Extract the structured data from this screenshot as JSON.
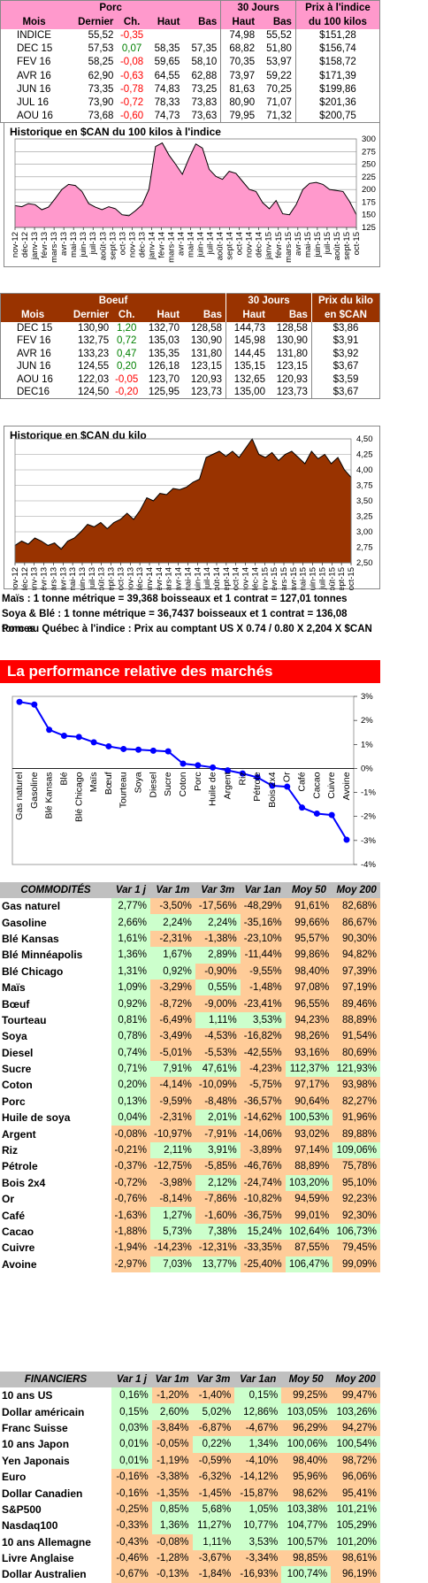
{
  "porc": {
    "title": "Porc",
    "h30": "30 Jours",
    "hprix": "Prix à l'indice",
    "cols": [
      "Mois",
      "Dernier",
      "Ch.",
      "Haut",
      "Bas",
      "Haut",
      "Bas",
      "du 100 kilos"
    ],
    "rows": [
      {
        "m": "INDICE",
        "d": "55,52",
        "ch": "-0,35",
        "hi": "",
        "lo": "",
        "h30": "74,98",
        "l30": "55,52",
        "p": "$151,28"
      },
      {
        "m": "DEC 15",
        "d": "57,53",
        "ch": "0,07",
        "hi": "58,35",
        "lo": "57,35",
        "h30": "68,82",
        "l30": "51,80",
        "p": "$156,74"
      },
      {
        "m": "FEV 16",
        "d": "58,25",
        "ch": "-0,08",
        "hi": "59,65",
        "lo": "58,10",
        "h30": "70,35",
        "l30": "53,97",
        "p": "$158,72"
      },
      {
        "m": "AVR 16",
        "d": "62,90",
        "ch": "-0,63",
        "hi": "64,55",
        "lo": "62,88",
        "h30": "73,97",
        "l30": "59,22",
        "p": "$171,39"
      },
      {
        "m": "JUN 16",
        "d": "73,35",
        "ch": "-0,78",
        "hi": "74,83",
        "lo": "73,25",
        "h30": "81,63",
        "l30": "70,25",
        "p": "$199,86"
      },
      {
        "m": "JUL 16",
        "d": "73,90",
        "ch": "-0,72",
        "hi": "78,33",
        "lo": "73,83",
        "h30": "80,90",
        "l30": "71,07",
        "p": "$201,36"
      },
      {
        "m": "AOU 16",
        "d": "73,68",
        "ch": "-0,60",
        "hi": "74,73",
        "lo": "73,63",
        "h30": "79,95",
        "l30": "71,32",
        "p": "$200,75"
      }
    ]
  },
  "boeuf": {
    "title": "Boeuf",
    "h30": "30 Jours",
    "hprix": "Prix du kilo",
    "cols": [
      "Mois",
      "Dernier",
      "Ch.",
      "Haut",
      "Bas",
      "Haut",
      "Bas",
      "en $CAN"
    ],
    "rows": [
      {
        "m": "DEC 15",
        "d": "130,90",
        "ch": "1,20",
        "hi": "132,70",
        "lo": "128,58",
        "h30": "144,73",
        "l30": "128,58",
        "p": "$3,86"
      },
      {
        "m": "FEV 16",
        "d": "132,75",
        "ch": "0,72",
        "hi": "135,03",
        "lo": "130,90",
        "h30": "145,98",
        "l30": "130,90",
        "p": "$3,91"
      },
      {
        "m": "AVR 16",
        "d": "133,23",
        "ch": "0,47",
        "hi": "135,35",
        "lo": "131,80",
        "h30": "144,45",
        "l30": "131,80",
        "p": "$3,92"
      },
      {
        "m": "JUN 16",
        "d": "124,55",
        "ch": "0,20",
        "hi": "126,18",
        "lo": "123,15",
        "h30": "135,15",
        "l30": "123,15",
        "p": "$3,67"
      },
      {
        "m": "AOU 16",
        "d": "122,03",
        "ch": "-0,05",
        "hi": "123,70",
        "lo": "120,93",
        "h30": "132,65",
        "l30": "120,93",
        "p": "$3,59"
      },
      {
        "m": "DEC16",
        "d": "124,50",
        "ch": "-0,20",
        "hi": "125,95",
        "lo": "123,73",
        "h30": "135,00",
        "l30": "123,73",
        "p": "$3,67"
      }
    ]
  },
  "chart_data": [
    {
      "type": "area",
      "title": "Historique en $CAN du 100 kilos à l'indice",
      "fill": "#ff99cc",
      "ylim": [
        125,
        300
      ],
      "yticks": [
        "125",
        "150",
        "175",
        "200",
        "225",
        "250",
        "275",
        "300"
      ],
      "xlabels": [
        "nov-12",
        "déc-12",
        "janv-13",
        "févr-13",
        "mars-13",
        "avr-13",
        "mai-13",
        "juin-13",
        "juil-13",
        "août-13",
        "sept-13",
        "oct-13",
        "nov-13",
        "déc-13",
        "janv-14",
        "févr-14",
        "mars-14",
        "avr-14",
        "mai-14",
        "juin-14",
        "juil-14",
        "août-14",
        "sept-14",
        "oct-14",
        "nov-14",
        "déc-14",
        "janv-15",
        "févr-15",
        "mars-15",
        "avr-15",
        "mai-15",
        "juin-15",
        "juil-15",
        "août-15",
        "sept-15",
        "oct-15"
      ],
      "values": [
        168,
        166,
        172,
        170,
        160,
        165,
        182,
        200,
        210,
        208,
        196,
        172,
        165,
        160,
        166,
        162,
        150,
        148,
        158,
        170,
        200,
        285,
        292,
        268,
        250,
        230,
        262,
        290,
        282,
        240,
        226,
        220,
        236,
        232,
        216,
        200,
        196,
        174,
        162,
        178,
        152,
        150,
        170,
        200,
        212,
        214,
        210,
        200,
        198,
        196,
        176,
        150
      ]
    },
    {
      "type": "area",
      "title": "Historique en $CAN du kilo",
      "fill": "#993300",
      "ylim": [
        2.5,
        4.5
      ],
      "yticks": [
        "2,50",
        "2,75",
        "3,00",
        "3,25",
        "3,50",
        "3,75",
        "4,00",
        "4,25",
        "4,50"
      ],
      "xlabels": [
        "nov-12",
        "déc-12",
        "janv-13",
        "févr-13",
        "mars-13",
        "avr-13",
        "mai-13",
        "juin-13",
        "juil-13",
        "août-13",
        "sept-13",
        "oct-13",
        "nov-13",
        "déc-13",
        "janv-14",
        "févr-14",
        "mars-14",
        "avr-14",
        "mai-14",
        "juin-14",
        "juil-14",
        "août-14",
        "sept-14",
        "oct-14",
        "nov-14",
        "déc-14",
        "janv-15",
        "févr-15",
        "mars-15",
        "avr-15",
        "mai-15",
        "juin-15",
        "juil-15",
        "août-15",
        "sept-15",
        "oct-15"
      ],
      "values": [
        2.78,
        2.85,
        2.8,
        2.9,
        2.85,
        2.78,
        2.82,
        2.72,
        2.85,
        2.9,
        3.0,
        3.12,
        3.08,
        3.15,
        3.05,
        3.15,
        3.2,
        3.3,
        3.2,
        3.35,
        3.55,
        3.5,
        3.62,
        3.6,
        3.7,
        3.68,
        3.72,
        3.8,
        3.85,
        4.2,
        4.25,
        4.3,
        4.22,
        4.3,
        4.2,
        4.35,
        4.5,
        4.25,
        4.2,
        4.28,
        4.15,
        4.25,
        4.3,
        4.2,
        4.1,
        4.3,
        4.18,
        4.25,
        4.1,
        4.2,
        4.0,
        3.88
      ]
    },
    {
      "type": "line",
      "title": "",
      "color": "#0000ff",
      "ylim": [
        -4,
        3
      ],
      "yticks": [
        "-4%",
        "-3%",
        "-2%",
        "-1%",
        "0%",
        "1%",
        "2%",
        "3%"
      ],
      "categories": [
        "Gas naturel",
        "Gasoline",
        "Blé Kansas",
        "Blé Minnéapolis",
        "Blé Chicago",
        "Maïs",
        "Bœuf",
        "Tourteau",
        "Soya",
        "Diesel",
        "Sucre",
        "Coton",
        "Porc",
        "Huile de soya",
        "Argent",
        "Riz",
        "Pétrole",
        "Bois 2x4",
        "Or",
        "Café",
        "Cacao",
        "Cuivre",
        "Avoine"
      ],
      "xlabels": [
        "Gas naturel",
        "Gasoline",
        "Blé Kansas",
        "Blé",
        "Blé Chicago",
        "Maïs",
        "Bœuf",
        "Tourteau",
        "Soya",
        "Diesel",
        "Sucre",
        "Coton",
        "Porc",
        "Huile de",
        "Argent",
        "Riz",
        "Pétrole",
        "Bois 2x4",
        "Or",
        "Café",
        "Cacao",
        "Cuivre",
        "Avoine"
      ],
      "values": [
        2.77,
        2.66,
        1.61,
        1.36,
        1.31,
        1.09,
        0.92,
        0.81,
        0.78,
        0.74,
        0.71,
        0.2,
        0.13,
        0.04,
        -0.08,
        -0.21,
        -0.37,
        -0.72,
        -0.76,
        -1.63,
        -1.88,
        -1.94,
        -2.97
      ]
    }
  ],
  "notes": [
    "Maïs : 1 tonne métrique = 39,368 boisseaux et 1 contrat = 127,01 tonnes",
    "Soya & Blé : 1 tonne métrique = 36,7437 boisseaux et 1 contrat = 136,08 tonnes",
    "Porc au Québec à l'indice : Prix au comptant US X 0.74 / 0.80 X 2,204 X $CAN"
  ],
  "perf_title": "La performance relative des marchés",
  "comm_head": [
    "COMMODITÉS",
    "Var 1 j",
    "Var 1m",
    "Var 3m",
    "Var 1an",
    "Moy 50",
    "Moy 200"
  ],
  "commodities": [
    [
      "Gas naturel",
      "2,77%",
      "-3,50%",
      "-17,56%",
      "-48,29%",
      "91,61%",
      "82,68%"
    ],
    [
      "Gasoline",
      "2,66%",
      "2,24%",
      "2,24%",
      "-35,16%",
      "99,66%",
      "86,67%"
    ],
    [
      "Blé Kansas",
      "1,61%",
      "-2,31%",
      "-1,38%",
      "-23,10%",
      "95,57%",
      "90,30%"
    ],
    [
      "Blé Minnéapolis",
      "1,36%",
      "1,67%",
      "2,89%",
      "-11,44%",
      "99,86%",
      "94,82%"
    ],
    [
      "Blé Chicago",
      "1,31%",
      "0,92%",
      "-0,90%",
      "-9,55%",
      "98,40%",
      "97,39%"
    ],
    [
      "Maïs",
      "1,09%",
      "-3,29%",
      "0,55%",
      "-1,48%",
      "97,08%",
      "97,19%"
    ],
    [
      "Bœuf",
      "0,92%",
      "-8,72%",
      "-9,00%",
      "-23,41%",
      "96,55%",
      "89,46%"
    ],
    [
      "Tourteau",
      "0,81%",
      "-6,49%",
      "1,11%",
      "3,53%",
      "94,23%",
      "88,89%"
    ],
    [
      "Soya",
      "0,78%",
      "-3,49%",
      "-4,53%",
      "-16,82%",
      "98,26%",
      "91,54%"
    ],
    [
      "Diesel",
      "0,74%",
      "-5,01%",
      "-5,53%",
      "-42,55%",
      "93,16%",
      "80,69%"
    ],
    [
      "Sucre",
      "0,71%",
      "7,91%",
      "47,61%",
      "-4,23%",
      "112,37%",
      "121,93%"
    ],
    [
      "Coton",
      "0,20%",
      "-4,14%",
      "-10,09%",
      "-5,75%",
      "97,17%",
      "93,98%"
    ],
    [
      "Porc",
      "0,13%",
      "-9,59%",
      "-8,48%",
      "-36,57%",
      "90,64%",
      "82,27%"
    ],
    [
      "Huile de soya",
      "0,04%",
      "-2,31%",
      "2,01%",
      "-14,62%",
      "100,53%",
      "91,96%"
    ],
    [
      "Argent",
      "-0,08%",
      "-10,97%",
      "-7,91%",
      "-14,06%",
      "93,02%",
      "89,88%"
    ],
    [
      "Riz",
      "-0,21%",
      "2,11%",
      "3,91%",
      "-3,89%",
      "97,14%",
      "109,06%"
    ],
    [
      "Pétrole",
      "-0,37%",
      "-12,75%",
      "-5,85%",
      "-46,76%",
      "88,89%",
      "75,78%"
    ],
    [
      "Bois 2x4",
      "-0,72%",
      "-3,98%",
      "2,12%",
      "-24,74%",
      "103,20%",
      "95,10%"
    ],
    [
      "Or",
      "-0,76%",
      "-8,14%",
      "-7,86%",
      "-10,82%",
      "94,59%",
      "92,23%"
    ],
    [
      "Café",
      "-1,63%",
      "1,27%",
      "-1,60%",
      "-36,75%",
      "99,01%",
      "92,30%"
    ],
    [
      "Cacao",
      "-1,88%",
      "5,73%",
      "7,38%",
      "15,24%",
      "102,64%",
      "106,73%"
    ],
    [
      "Cuivre",
      "-1,94%",
      "-14,23%",
      "-12,31%",
      "-33,35%",
      "87,55%",
      "79,45%"
    ],
    [
      "Avoine",
      "-2,97%",
      "7,03%",
      "13,77%",
      "-25,40%",
      "106,47%",
      "99,09%"
    ]
  ],
  "fin_head": [
    "FINANCIERS",
    "Var 1 j",
    "Var 1m",
    "Var 3m",
    "Var 1an",
    "Moy 50",
    "Moy 200"
  ],
  "financiers": [
    [
      "10 ans US",
      "0,16%",
      "-1,20%",
      "-1,40%",
      "0,15%",
      "99,25%",
      "99,47%"
    ],
    [
      "Dollar américain",
      "0,15%",
      "2,60%",
      "5,02%",
      "12,86%",
      "103,05%",
      "103,26%"
    ],
    [
      "Franc Suisse",
      "0,03%",
      "-3,84%",
      "-6,87%",
      "-4,67%",
      "96,29%",
      "94,27%"
    ],
    [
      "10 ans Japon",
      "0,01%",
      "-0,05%",
      "0,22%",
      "1,34%",
      "100,06%",
      "100,54%"
    ],
    [
      "Yen Japonais",
      "0,01%",
      "-1,19%",
      "-0,59%",
      "-4,10%",
      "98,40%",
      "98,72%"
    ],
    [
      "Euro",
      "-0,16%",
      "-3,38%",
      "-6,32%",
      "-14,12%",
      "95,96%",
      "96,06%"
    ],
    [
      "Dollar Canadien",
      "-0,16%",
      "-1,35%",
      "-1,45%",
      "-15,87%",
      "98,62%",
      "95,41%"
    ],
    [
      "S&P500",
      "-0,25%",
      "0,85%",
      "5,68%",
      "1,05%",
      "103,38%",
      "101,21%"
    ],
    [
      "Nasdaq100",
      "-0,33%",
      "1,36%",
      "11,27%",
      "10,77%",
      "104,77%",
      "105,29%"
    ],
    [
      "10 ans Allemagne",
      "-0,43%",
      "-0,08%",
      "1,11%",
      "3,53%",
      "100,57%",
      "101,20%"
    ],
    [
      "Livre Anglaise",
      "-0,46%",
      "-1,28%",
      "-3,67%",
      "-3,34%",
      "98,85%",
      "98,61%"
    ],
    [
      "Dollar Australien",
      "-0,67%",
      "-0,13%",
      "-1,84%",
      "-16,93%",
      "100,74%",
      "96,19%"
    ]
  ]
}
